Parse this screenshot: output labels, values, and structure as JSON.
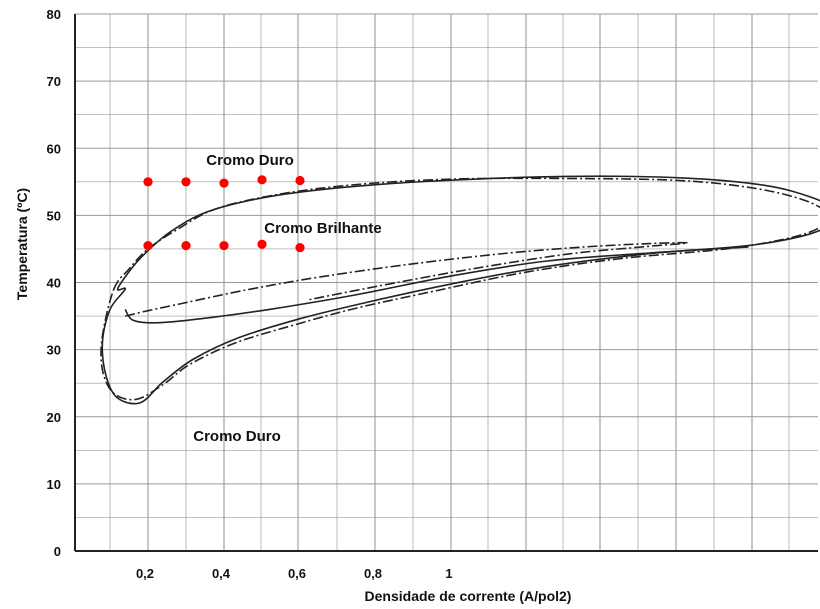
{
  "chart_data": {
    "type": "line",
    "title": "",
    "xlabel": "Densidade de corrente (A/pol2)",
    "ylabel": "Temperatura (ºC)",
    "ylim": [
      0,
      80
    ],
    "y_ticks": [
      "0",
      "10",
      "20",
      "30",
      "40",
      "50",
      "60",
      "70",
      "80"
    ],
    "x_ticks": [
      {
        "value": 0.2,
        "label": "0,2"
      },
      {
        "value": 0.4,
        "label": "0,4"
      },
      {
        "value": 0.6,
        "label": "0,6"
      },
      {
        "value": 0.8,
        "label": "0,8"
      },
      {
        "value": 1.0,
        "label": "1"
      }
    ],
    "grid": true,
    "legend": "none",
    "colors": {
      "curve": "#222222",
      "points": "#ff0000",
      "grid": "#9a9a9a"
    },
    "annotations": [
      {
        "id": "top",
        "text": "Cromo Duro",
        "x": 0.48,
        "y": 58.5
      },
      {
        "id": "middle",
        "text": "Cromo Brilhante",
        "x": 0.68,
        "y": 48.5
      },
      {
        "id": "bottom",
        "text": "Cromo Duro",
        "x": 0.48,
        "y": 17.5
      }
    ],
    "series": [
      {
        "style": "solid",
        "closed": true,
        "x": [
          0.12,
          0.15,
          0.19,
          0.26,
          0.36,
          0.52,
          0.72,
          0.98,
          1.3,
          1.6,
          1.82,
          1.95,
          2.02,
          2.02,
          1.94,
          1.78,
          1.52,
          1.25,
          1.0,
          0.78,
          0.6,
          0.44,
          0.32,
          0.24,
          0.18,
          0.12,
          0.09,
          0.08,
          0.1,
          0.14,
          0.2
        ],
        "y": [
          39,
          41.6,
          44.2,
          47.6,
          50.6,
          52.8,
          54.2,
          55.2,
          55.8,
          55.6,
          54.5,
          52.6,
          50.5,
          49.4,
          47.2,
          45.5,
          44.3,
          42.4,
          39.8,
          37.1,
          34.6,
          31.8,
          28.6,
          25.2,
          22.1,
          22.8,
          26,
          31,
          36,
          39,
          39
        ]
      },
      {
        "style": "solid",
        "closed": false,
        "x": [
          0.14,
          0.16,
          0.22,
          0.34,
          0.52,
          0.75,
          1.0,
          1.25,
          1.52,
          1.78
        ],
        "y": [
          36,
          34.4,
          34.0,
          34.6,
          36.0,
          38.2,
          41.0,
          43.2,
          44.4,
          45.3
        ]
      },
      {
        "style": "dash-dot",
        "closed": true,
        "x": [
          0.11,
          0.15,
          0.2,
          0.28,
          0.38,
          0.55,
          0.75,
          1.0,
          1.3,
          1.6,
          1.8,
          1.93,
          1.99,
          1.98,
          1.9,
          1.72,
          1.45,
          1.2,
          0.96,
          0.75,
          0.58,
          0.43,
          0.31,
          0.24,
          0.17,
          0.11,
          0.08,
          0.08,
          0.09
        ],
        "y": [
          39,
          42.0,
          45.0,
          48.0,
          51.0,
          53.2,
          54.6,
          55.4,
          55.5,
          55.2,
          54.0,
          52.2,
          50.2,
          48.6,
          46.8,
          45.0,
          43.6,
          41.6,
          38.8,
          36.2,
          33.6,
          31.0,
          27.8,
          24.8,
          22.6,
          23.5,
          27,
          32,
          39
        ]
      },
      {
        "style": "dash-dot",
        "closed": false,
        "x": [
          0.14,
          0.2,
          0.3,
          0.45,
          0.65,
          0.9,
          1.15,
          1.35,
          1.52,
          1.62,
          1.5,
          1.3,
          1.05,
          0.8,
          0.62
        ],
        "y": [
          35,
          35.8,
          37.0,
          38.8,
          40.8,
          42.8,
          44.4,
          45.3,
          45.8,
          45.9,
          45.3,
          44.2,
          42.0,
          39.4,
          37.4
        ]
      }
    ],
    "points": [
      {
        "x": 0.2,
        "y": 55
      },
      {
        "x": 0.3,
        "y": 55
      },
      {
        "x": 0.4,
        "y": 54.8
      },
      {
        "x": 0.5,
        "y": 55.3
      },
      {
        "x": 0.6,
        "y": 55.2
      },
      {
        "x": 0.2,
        "y": 45.5
      },
      {
        "x": 0.3,
        "y": 45.5
      },
      {
        "x": 0.4,
        "y": 45.5
      },
      {
        "x": 0.5,
        "y": 45.7
      },
      {
        "x": 0.6,
        "y": 45.2
      }
    ]
  }
}
